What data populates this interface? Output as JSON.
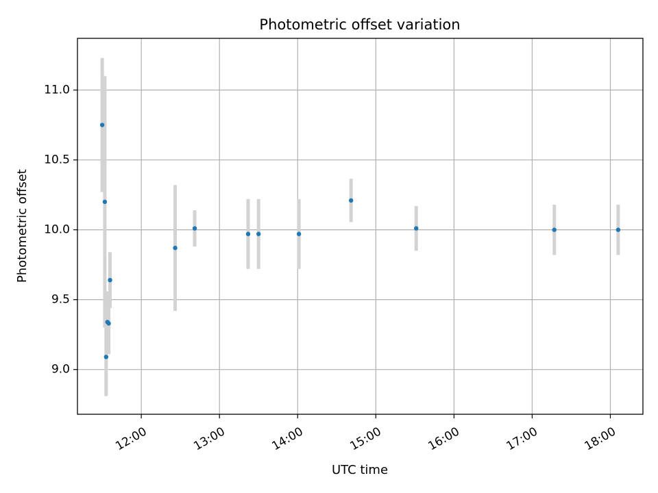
{
  "chart_data": {
    "type": "scatter",
    "title": "Photometric offset variation",
    "xlabel": "UTC time",
    "ylabel": "Photometric offset",
    "x_tick_labels": [
      "12:00",
      "13:00",
      "14:00",
      "15:00",
      "16:00",
      "17:00",
      "18:00"
    ],
    "y_tick_labels": [
      "9.0",
      "9.5",
      "10.0",
      "10.5",
      "11.0"
    ],
    "x_ticks": [
      "12:00",
      "13:00",
      "14:00",
      "15:00",
      "16:00",
      "17:00",
      "18:00"
    ],
    "y_ticks": [
      9.0,
      9.5,
      10.0,
      10.5,
      11.0
    ],
    "xlim": [
      "11:11",
      "18:25"
    ],
    "ylim": [
      8.68,
      11.37
    ],
    "grid": true,
    "legend": "none",
    "colors": {
      "marker": "#1f77b4",
      "errorbar": "#d3d3d3",
      "grid": "#b0b0b0",
      "axes": "#000000"
    },
    "series": [
      {
        "points": [
          {
            "x": "11:30",
            "y": 10.75,
            "err": 0.48
          },
          {
            "x": "11:32",
            "y": 10.2,
            "err": 0.9
          },
          {
            "x": "11:33",
            "y": 9.09,
            "err": 0.28
          },
          {
            "x": "11:34",
            "y": 9.34,
            "err": 0.22
          },
          {
            "x": "11:35",
            "y": 9.33,
            "err": 0.22
          },
          {
            "x": "11:36",
            "y": 9.64,
            "err": 0.2
          },
          {
            "x": "12:26",
            "y": 9.87,
            "err": 0.45
          },
          {
            "x": "12:41",
            "y": 10.01,
            "err": 0.13
          },
          {
            "x": "13:22",
            "y": 9.97,
            "err": 0.25
          },
          {
            "x": "13:30",
            "y": 9.97,
            "err": 0.25
          },
          {
            "x": "14:01",
            "y": 9.97,
            "err": 0.25
          },
          {
            "x": "14:41",
            "y": 10.21,
            "err": 0.155
          },
          {
            "x": "15:31",
            "y": 10.01,
            "err": 0.16
          },
          {
            "x": "17:17",
            "y": 10.0,
            "err": 0.18
          },
          {
            "x": "18:06",
            "y": 10.0,
            "err": 0.18
          }
        ]
      }
    ]
  }
}
